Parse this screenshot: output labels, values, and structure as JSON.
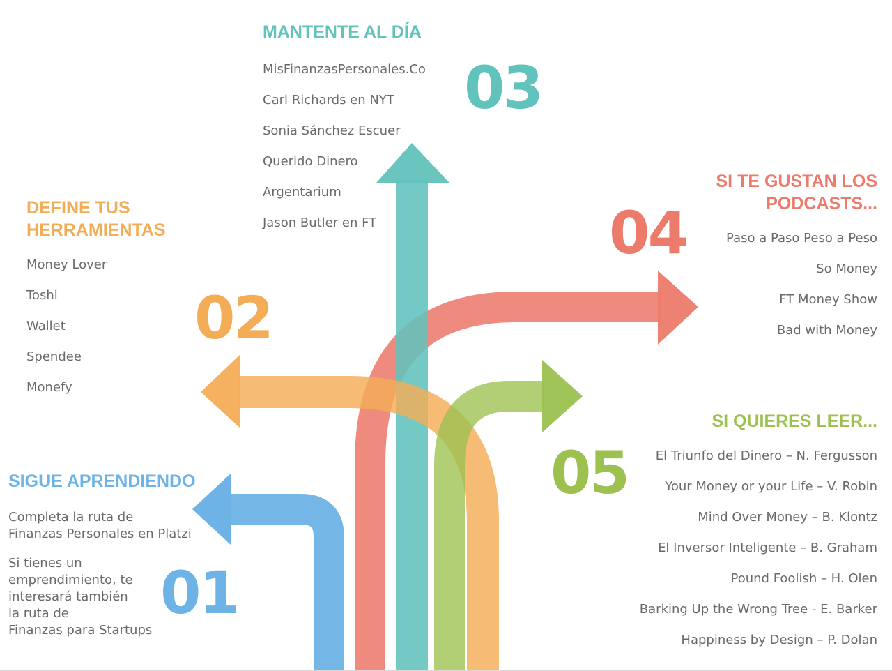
{
  "colors": {
    "blue": "#6db3e6",
    "orange": "#f4ad57",
    "teal": "#62c2bc",
    "red": "#ec7b6c",
    "green": "#9cc14f",
    "text": "#6a6a6a"
  },
  "sections": {
    "s01": {
      "number": "01",
      "title": "SIGUE APRENDIENDO",
      "paragraphs": [
        "Completa la ruta de\nFinanzas Personales en Platzi",
        "Si tienes un\nemprendimiento, te\ninteresará también\nla ruta de\nFinanzas para Startups"
      ]
    },
    "s02": {
      "number": "02",
      "title": "DEFINE TUS\nHERRAMIENTAS",
      "items": [
        "Money Lover",
        "Toshl",
        "Wallet",
        "Spendee",
        "Monefy"
      ]
    },
    "s03": {
      "number": "03",
      "title": "MANTENTE AL DÍA",
      "items": [
        "MisFinanzasPersonales.Co",
        "Carl Richards en NYT",
        "Sonia Sánchez Escuer",
        "Querido Dinero",
        "Argentarium",
        "Jason Butler en FT"
      ]
    },
    "s04": {
      "number": "04",
      "title": "SI TE GUSTAN LOS\nPODCASTS...",
      "items": [
        "Paso a Paso Peso a Peso",
        "So Money",
        "FT Money Show",
        "Bad with Money"
      ]
    },
    "s05": {
      "number": "05",
      "title": "SI QUIERES LEER...",
      "items": [
        "El Triunfo del Dinero – N. Fergusson",
        "Your Money or your Life – V. Robin",
        "Mind Over Money – B. Klontz",
        "El Inversor Inteligente – B. Graham",
        "Pound Foolish – H. Olen",
        "Barking Up the Wrong Tree - E. Barker",
        "Happiness by Design – P. Dolan"
      ]
    }
  }
}
